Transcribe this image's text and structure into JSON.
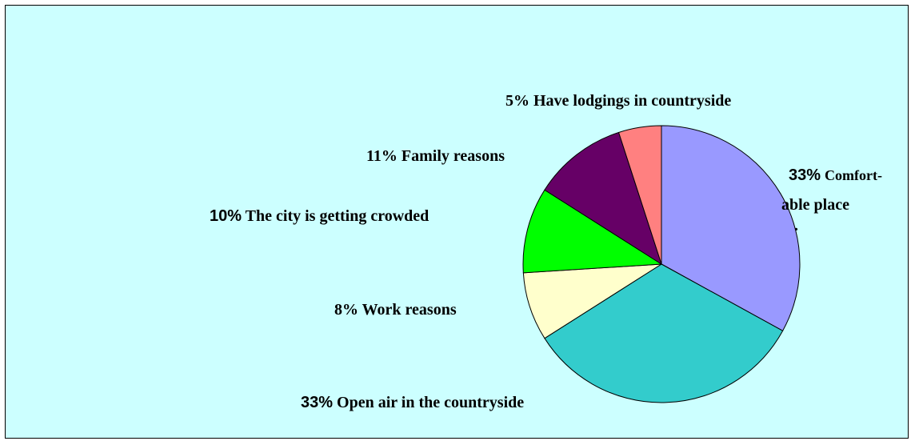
{
  "chart_data": {
    "type": "pie",
    "start": "12 o'clock",
    "direction": "clockwise",
    "background": "#ccffff",
    "slices": [
      {
        "pct_text": "33%",
        "label": "Comfort-",
        "label_line2": "able place",
        "trail": ".",
        "value": 33,
        "color": "#9999ff"
      },
      {
        "pct_text": "33%",
        "label": "Open air in the countryside",
        "value": 33,
        "color": "#33cccc"
      },
      {
        "pct_text": "8%",
        "label": "Work reasons",
        "value": 8,
        "color": "#ffffcc"
      },
      {
        "pct_text": "10%",
        "label": "The city is getting crowded",
        "value": 10,
        "color": "#00ff00"
      },
      {
        "pct_text": "11%",
        "label": "Family reasons",
        "value": 11,
        "color": "#660066"
      },
      {
        "pct_text": "5%",
        "label": "Have lodgings in countryside",
        "value": 5,
        "color": "#ff8080"
      }
    ]
  }
}
